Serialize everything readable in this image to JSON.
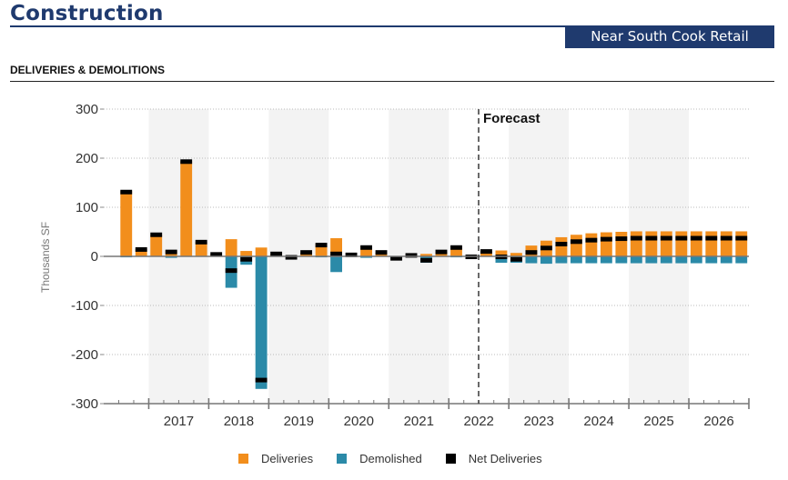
{
  "header": {
    "title": "Construction",
    "badge": "Near South Cook Retail",
    "section_title": "DELIVERIES & DEMOLITIONS"
  },
  "colors": {
    "brand": "#1f3a6e",
    "deliveries": "#f28e1c",
    "demolished": "#2b8aa8",
    "net_deliveries": "#000000",
    "band": "#f3f3f3"
  },
  "chart_data": {
    "type": "bar",
    "stacked": true,
    "title": "DELIVERIES & DEMOLITIONS",
    "xlabel": "",
    "ylabel": "Thousands SF",
    "ylim": [
      -300,
      300
    ],
    "yticks": [
      300,
      200,
      100,
      0,
      -100,
      -200,
      -300
    ],
    "grid": true,
    "legend_position": "bottom",
    "forecast_label": "Forecast",
    "forecast_start": "2022 Q3",
    "years": [
      "2017",
      "2018",
      "2019",
      "2020",
      "2021",
      "2022",
      "2023",
      "2024",
      "2025",
      "2026"
    ],
    "shaded_years": [
      "2017",
      "2019",
      "2021",
      "2023",
      "2025"
    ],
    "categories": [
      "2016 Q2",
      "2016 Q3",
      "2016 Q4",
      "2017 Q1",
      "2017 Q2",
      "2017 Q3",
      "2017 Q4",
      "2018 Q1",
      "2018 Q2",
      "2018 Q3",
      "2018 Q4",
      "2019 Q1",
      "2019 Q2",
      "2019 Q3",
      "2019 Q4",
      "2020 Q1",
      "2020 Q2",
      "2020 Q3",
      "2020 Q4",
      "2021 Q1",
      "2021 Q2",
      "2021 Q3",
      "2021 Q4",
      "2022 Q1",
      "2022 Q2",
      "2022 Q3",
      "2022 Q4",
      "2023 Q1",
      "2023 Q2",
      "2023 Q3",
      "2023 Q4",
      "2024 Q1",
      "2024 Q2",
      "2024 Q3",
      "2024 Q4",
      "2025 Q1",
      "2025 Q2",
      "2025 Q3",
      "2025 Q4",
      "2026 Q1",
      "2026 Q2",
      "2026 Q3",
      "2026 Q4"
    ],
    "series": [
      {
        "name": "Deliveries",
        "values": [
          0,
          133,
          15,
          44,
          12,
          194,
          30,
          4,
          35,
          11,
          18,
          5,
          0,
          8,
          25,
          37,
          3,
          21,
          8,
          0,
          2,
          5,
          9,
          20,
          1,
          11,
          12,
          7,
          22,
          32,
          39,
          44,
          47,
          49,
          50,
          51,
          51,
          51,
          51,
          51,
          51,
          51,
          51
        ]
      },
      {
        "name": "Demolished",
        "values": [
          0,
          -2,
          -1,
          0,
          -3,
          -1,
          -1,
          0,
          -64,
          -17,
          -270,
          0,
          -2,
          0,
          -2,
          -32,
          0,
          -3,
          0,
          -4,
          0,
          -13,
          0,
          -2,
          -2,
          -1,
          -13,
          -13,
          -14,
          -15,
          -14,
          -14,
          -14,
          -14,
          -14,
          -14,
          -14,
          -14,
          -14,
          -14,
          -14,
          -14,
          -14
        ]
      },
      {
        "name": "Net Deliveries",
        "values": [
          0,
          131,
          14,
          44,
          9,
          193,
          29,
          4,
          -29,
          -6,
          -252,
          5,
          -2,
          8,
          23,
          5,
          3,
          18,
          8,
          -4,
          2,
          -8,
          9,
          18,
          -1,
          10,
          -1,
          -6,
          8,
          17,
          25,
          30,
          33,
          35,
          36,
          37,
          37,
          37,
          37,
          37,
          37,
          37,
          37
        ]
      }
    ]
  },
  "legend": [
    {
      "label": "Deliveries",
      "color": "#f28e1c"
    },
    {
      "label": "Demolished",
      "color": "#2b8aa8"
    },
    {
      "label": "Net Deliveries",
      "color": "#000000"
    }
  ]
}
